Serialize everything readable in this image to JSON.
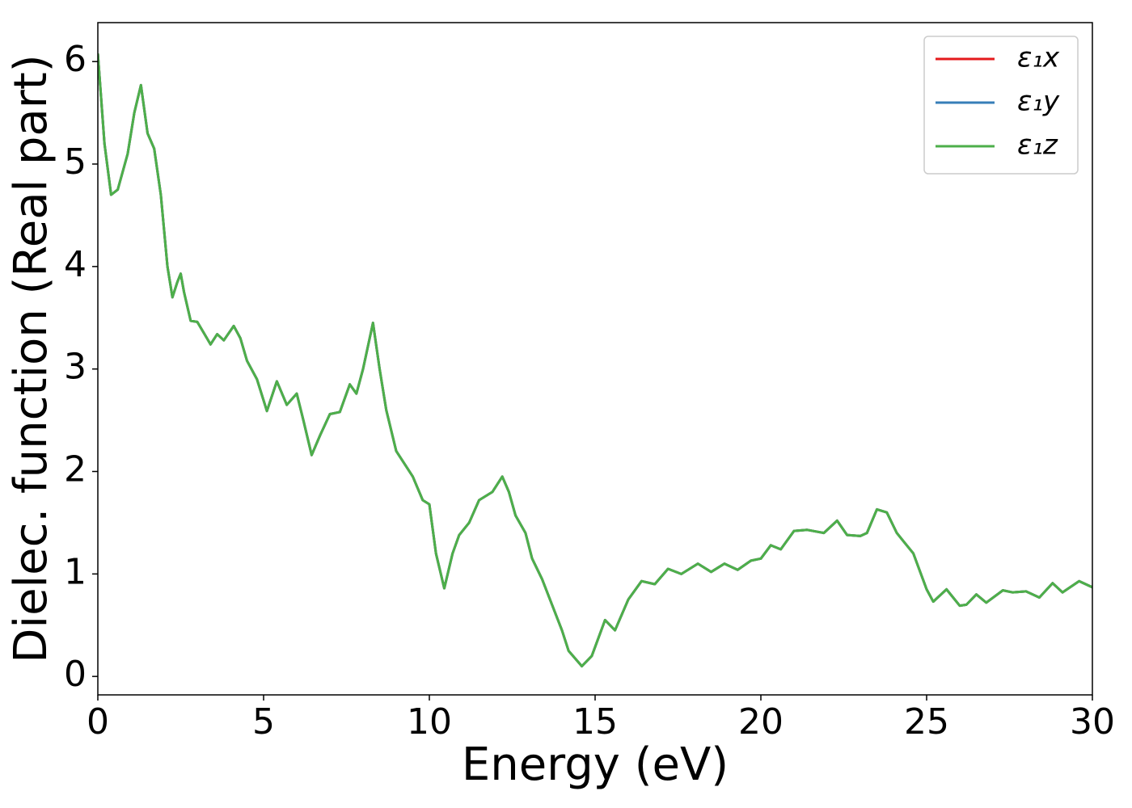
{
  "chart_data": {
    "type": "line",
    "xlabel": "Energy (eV)",
    "ylabel": "Dielec. function (Real part)",
    "x": [
      0,
      0.2,
      0.4,
      0.6,
      0.9,
      1.1,
      1.3,
      1.5,
      1.7,
      1.9,
      2.1,
      2.25,
      2.4,
      2.5,
      2.6,
      2.8,
      3.0,
      3.2,
      3.4,
      3.6,
      3.8,
      4.1,
      4.3,
      4.5,
      4.8,
      5.1,
      5.4,
      5.7,
      6.0,
      6.2,
      6.45,
      6.7,
      7.0,
      7.3,
      7.6,
      7.8,
      8.0,
      8.3,
      8.5,
      8.7,
      9.0,
      9.5,
      9.8,
      10.0,
      10.2,
      10.45,
      10.7,
      10.9,
      11.2,
      11.5,
      11.9,
      12.2,
      12.4,
      12.6,
      12.9,
      13.1,
      13.4,
      13.7,
      14.0,
      14.2,
      14.6,
      14.9,
      15.3,
      15.6,
      16.0,
      16.4,
      16.8,
      17.2,
      17.6,
      18.1,
      18.5,
      18.9,
      19.3,
      19.7,
      20.0,
      20.3,
      20.6,
      21.0,
      21.4,
      21.9,
      22.3,
      22.6,
      23.0,
      23.2,
      23.5,
      23.8,
      24.1,
      24.3,
      24.6,
      25.0,
      25.2,
      25.6,
      26.0,
      26.2,
      26.5,
      26.8,
      27.3,
      27.6,
      28.0,
      28.4,
      28.8,
      29.1,
      29.6,
      30.0
    ],
    "series": [
      {
        "name": "ε₁x",
        "color": "#e41a1c",
        "values": [
          6.08,
          5.2,
          4.7,
          4.75,
          5.1,
          5.5,
          5.77,
          5.3,
          5.15,
          4.7,
          4.0,
          3.7,
          3.85,
          3.93,
          3.75,
          3.47,
          3.46,
          3.35,
          3.24,
          3.34,
          3.28,
          3.42,
          3.3,
          3.08,
          2.9,
          2.59,
          2.88,
          2.65,
          2.76,
          2.5,
          2.16,
          2.35,
          2.56,
          2.58,
          2.85,
          2.76,
          3.0,
          3.45,
          3.0,
          2.6,
          2.2,
          1.95,
          1.72,
          1.68,
          1.2,
          0.86,
          1.2,
          1.38,
          1.5,
          1.72,
          1.8,
          1.95,
          1.8,
          1.57,
          1.4,
          1.15,
          0.95,
          0.7,
          0.45,
          0.25,
          0.1,
          0.2,
          0.55,
          0.45,
          0.75,
          0.93,
          0.9,
          1.05,
          1.0,
          1.1,
          1.02,
          1.1,
          1.04,
          1.13,
          1.15,
          1.28,
          1.24,
          1.42,
          1.43,
          1.4,
          1.52,
          1.38,
          1.37,
          1.4,
          1.63,
          1.6,
          1.4,
          1.32,
          1.2,
          0.85,
          0.73,
          0.85,
          0.69,
          0.7,
          0.8,
          0.72,
          0.84,
          0.82,
          0.83,
          0.77,
          0.91,
          0.82,
          0.93,
          0.87
        ]
      },
      {
        "name": "ε₁y",
        "color": "#377eb8",
        "values": [
          6.08,
          5.2,
          4.7,
          4.75,
          5.1,
          5.5,
          5.77,
          5.3,
          5.15,
          4.7,
          4.0,
          3.7,
          3.85,
          3.93,
          3.75,
          3.47,
          3.46,
          3.35,
          3.24,
          3.34,
          3.28,
          3.42,
          3.3,
          3.08,
          2.9,
          2.59,
          2.88,
          2.65,
          2.76,
          2.5,
          2.16,
          2.35,
          2.56,
          2.58,
          2.85,
          2.76,
          3.0,
          3.45,
          3.0,
          2.6,
          2.2,
          1.95,
          1.72,
          1.68,
          1.2,
          0.86,
          1.2,
          1.38,
          1.5,
          1.72,
          1.8,
          1.95,
          1.8,
          1.57,
          1.4,
          1.15,
          0.95,
          0.7,
          0.45,
          0.25,
          0.1,
          0.2,
          0.55,
          0.45,
          0.75,
          0.93,
          0.9,
          1.05,
          1.0,
          1.1,
          1.02,
          1.1,
          1.04,
          1.13,
          1.15,
          1.28,
          1.24,
          1.42,
          1.43,
          1.4,
          1.52,
          1.38,
          1.37,
          1.4,
          1.63,
          1.6,
          1.4,
          1.32,
          1.2,
          0.85,
          0.73,
          0.85,
          0.69,
          0.7,
          0.8,
          0.72,
          0.84,
          0.82,
          0.83,
          0.77,
          0.91,
          0.82,
          0.93,
          0.87
        ]
      },
      {
        "name": "ε₁z",
        "color": "#4daf4a",
        "values": [
          6.08,
          5.2,
          4.7,
          4.75,
          5.1,
          5.5,
          5.77,
          5.3,
          5.15,
          4.7,
          4.0,
          3.7,
          3.85,
          3.93,
          3.75,
          3.47,
          3.46,
          3.35,
          3.24,
          3.34,
          3.28,
          3.42,
          3.3,
          3.08,
          2.9,
          2.59,
          2.88,
          2.65,
          2.76,
          2.5,
          2.16,
          2.35,
          2.56,
          2.58,
          2.85,
          2.76,
          3.0,
          3.45,
          3.0,
          2.6,
          2.2,
          1.95,
          1.72,
          1.68,
          1.2,
          0.86,
          1.2,
          1.38,
          1.5,
          1.72,
          1.8,
          1.95,
          1.8,
          1.57,
          1.4,
          1.15,
          0.95,
          0.7,
          0.45,
          0.25,
          0.1,
          0.2,
          0.55,
          0.45,
          0.75,
          0.93,
          0.9,
          1.05,
          1.0,
          1.1,
          1.02,
          1.1,
          1.04,
          1.13,
          1.15,
          1.28,
          1.24,
          1.42,
          1.43,
          1.4,
          1.52,
          1.38,
          1.37,
          1.4,
          1.63,
          1.6,
          1.4,
          1.32,
          1.2,
          0.85,
          0.73,
          0.85,
          0.69,
          0.7,
          0.8,
          0.72,
          0.84,
          0.82,
          0.83,
          0.77,
          0.91,
          0.82,
          0.93,
          0.87
        ]
      }
    ],
    "xlim": [
      0,
      30
    ],
    "xticks": [
      0,
      5,
      10,
      15,
      20,
      25,
      30
    ],
    "ylim": [
      -0.18,
      6.38
    ],
    "yticks": [
      0,
      1,
      2,
      3,
      4,
      5,
      6
    ],
    "grid": false,
    "legend": "upper right"
  }
}
